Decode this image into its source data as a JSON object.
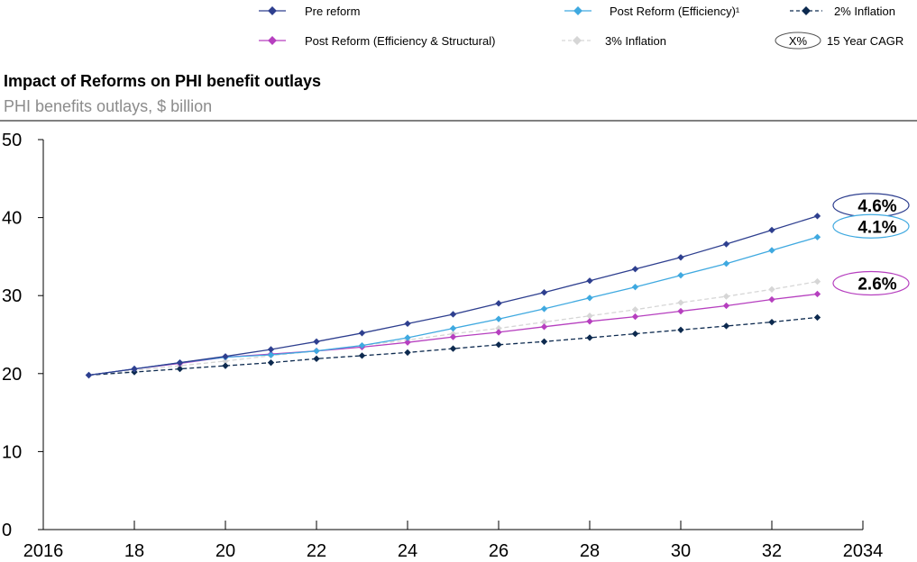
{
  "title": "Impact of Reforms on PHI benefit outlays",
  "subtitle": "PHI benefits outlays, $ billion",
  "legend": [
    {
      "label": "Pre reform",
      "color": "#2e3f8f",
      "dashed": false
    },
    {
      "label": "Post Reform (Efficiency)¹",
      "color": "#3fa9e0",
      "dashed": false
    },
    {
      "label": "2% Inflation",
      "color": "#0d2a4f",
      "dashed": true
    },
    {
      "label": "Post Reform (Efficiency & Structural)",
      "color": "#b63fbf",
      "dashed": false
    },
    {
      "label": "3% Inflation",
      "color": "#d6d6d6",
      "dashed": true
    }
  ],
  "cagr_legend": {
    "symbol": "X%",
    "label": "15 Year CAGR"
  },
  "cagr_labels": [
    {
      "value": "4.6%",
      "color": "#2e3f8f",
      "y": 40.2
    },
    {
      "value": "4.1%",
      "color": "#3fa9e0",
      "y": 37.5
    },
    {
      "value": "2.6%",
      "color": "#b63fbf",
      "y": 30.2
    }
  ],
  "chart_data": {
    "type": "line",
    "title": "Impact of Reforms on PHI benefit outlays",
    "subtitle": "PHI benefits outlays, $ billion",
    "xlabel": "",
    "ylabel": "",
    "xlim": [
      2016,
      2034
    ],
    "ylim": [
      0,
      50
    ],
    "x_ticks": [
      2016,
      2018,
      2020,
      2022,
      2024,
      2026,
      2028,
      2030,
      2032,
      2034
    ],
    "x_tick_labels": [
      "2016",
      "18",
      "20",
      "22",
      "24",
      "26",
      "28",
      "30",
      "32",
      "2034"
    ],
    "y_ticks": [
      0,
      10,
      20,
      30,
      40,
      50
    ],
    "y_tick_labels": [
      "0",
      "10",
      "20",
      "30",
      "40",
      "50"
    ],
    "grid": false,
    "legend_position": "top",
    "x": [
      2017,
      2018,
      2019,
      2020,
      2021,
      2022,
      2023,
      2024,
      2025,
      2026,
      2027,
      2028,
      2029,
      2030,
      2031,
      2032,
      2033
    ],
    "series": [
      {
        "name": "3% Inflation",
        "color": "#d6d6d6",
        "dashed": true,
        "values": [
          19.8,
          20.4,
          21.0,
          21.6,
          22.3,
          22.9,
          23.6,
          24.3,
          25.1,
          25.8,
          26.6,
          27.4,
          28.2,
          29.1,
          29.9,
          30.8,
          31.8
        ]
      },
      {
        "name": "2% Inflation",
        "color": "#0d2a4f",
        "dashed": true,
        "values": [
          19.8,
          20.2,
          20.6,
          21.0,
          21.4,
          21.9,
          22.3,
          22.7,
          23.2,
          23.7,
          24.1,
          24.6,
          25.1,
          25.6,
          26.1,
          26.6,
          27.2
        ]
      },
      {
        "name": "Post Reform (Efficiency & Structural)",
        "color": "#b63fbf",
        "dashed": false,
        "values": [
          19.8,
          20.6,
          21.3,
          22.1,
          22.5,
          22.9,
          23.4,
          24.0,
          24.7,
          25.3,
          26.0,
          26.7,
          27.3,
          28.0,
          28.7,
          29.5,
          30.2
        ]
      },
      {
        "name": "Post Reform (Efficiency)¹",
        "color": "#3fa9e0",
        "dashed": false,
        "values": [
          19.8,
          20.6,
          21.4,
          22.1,
          22.4,
          22.9,
          23.6,
          24.6,
          25.8,
          27.0,
          28.3,
          29.7,
          31.1,
          32.6,
          34.1,
          35.8,
          37.5
        ]
      },
      {
        "name": "Pre reform",
        "color": "#2e3f8f",
        "dashed": false,
        "values": [
          19.8,
          20.6,
          21.4,
          22.2,
          23.1,
          24.1,
          25.2,
          26.4,
          27.6,
          29.0,
          30.4,
          31.9,
          33.4,
          34.9,
          36.6,
          38.4,
          40.2
        ]
      }
    ]
  }
}
